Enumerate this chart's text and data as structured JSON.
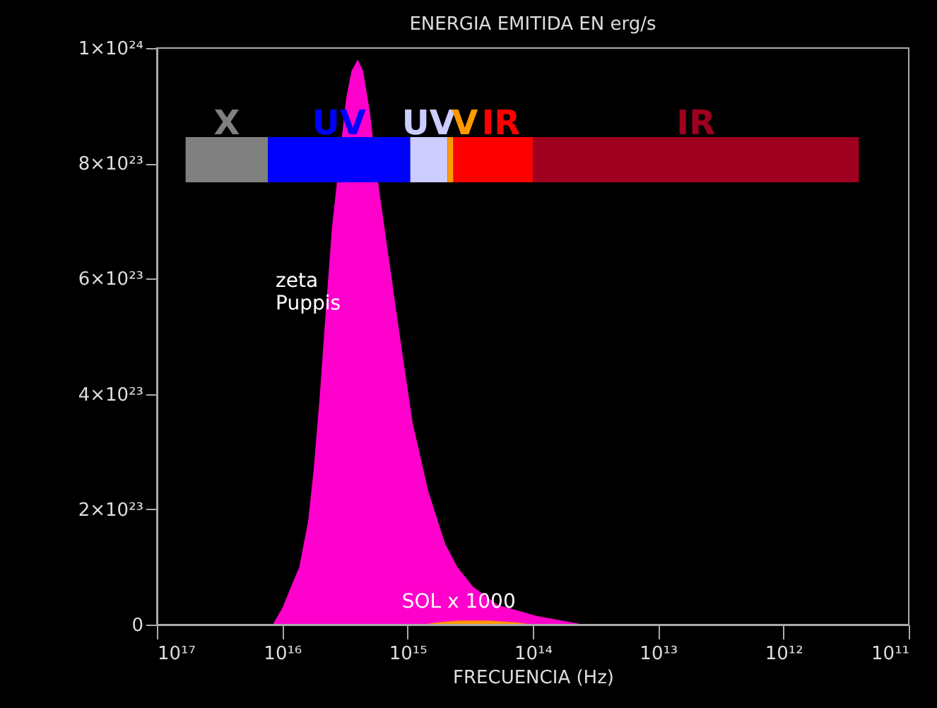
{
  "chart_data": {
    "type": "area",
    "title": "ENERGIA EMITIDA EN erg/s",
    "xlabel": "FRECUENCIA (Hz)",
    "log": "x",
    "xlim": [
      1e+17,
      100000000000.0
    ],
    "xticks": [
      {
        "value": 1e+17,
        "label": "10¹⁷"
      },
      {
        "value": 1e+16,
        "label": "10¹⁶"
      },
      {
        "value": 1000000000000000.0,
        "label": "10¹⁵"
      },
      {
        "value": 100000000000000.0,
        "label": "10¹⁴"
      },
      {
        "value": 10000000000000.0,
        "label": "10¹³"
      },
      {
        "value": 1000000000000.0,
        "label": "10¹²"
      },
      {
        "value": 100000000000.0,
        "label": "10¹¹"
      }
    ],
    "ylim": [
      0,
      1e+24
    ],
    "yticks": [
      0,
      {
        "value": 2e+23,
        "label": "2×10²³"
      },
      {
        "value": 4e+23,
        "label": "4×10²³"
      },
      {
        "value": 6e+23,
        "label": "6×10²³"
      },
      {
        "value": 8e+23,
        "label": "8×10²³"
      },
      {
        "value": 1e+24,
        "label": "1×10²⁴"
      }
    ],
    "series": [
      {
        "name": "zeta Puppis",
        "color": "#ff00cc",
        "x": [
          1.19e+16,
          9900000000000000.0,
          8500000000000000.0,
          7300000000000000.0,
          6200000000000000.0,
          5600000000000000.0,
          5000000000000000.0,
          4500000000000000.0,
          4000000000000000.0,
          3100000000000000.0,
          2800000000000000.0,
          2500000000000000.0,
          2260000000000000.0,
          2000000000000000.0,
          1700000000000000.0,
          1420000000000000.0,
          1150000000000000.0,
          910000000000000.0,
          680000000000000.0,
          500000000000000.0,
          400000000000000.0,
          300000000000000.0,
          190000000000000.0,
          93000000000000.0,
          39000000000000.0
        ],
        "values": [
          0,
          3e+22,
          6.6e+22,
          1e+23,
          1.8e+23,
          2.7e+23,
          4e+23,
          5.4e+23,
          6.9e+23,
          9.1e+23,
          9.6e+23,
          9.8e+23,
          9.6e+23,
          8.9e+23,
          7.6e+23,
          6.4e+23,
          5e+23,
          3.5e+23,
          2.3e+23,
          1.4e+23,
          1e+23,
          6.6e+22,
          3.4e+22,
          1.5e+22,
          0
        ]
      },
      {
        "name": "SOL x 1000",
        "color": "#ff9900",
        "x": [
          780000000000000.0,
          570000000000000.0,
          390000000000000.0,
          230000000000000.0,
          137000000000000.0,
          98000000000000.0
        ],
        "values": [
          0,
          4e+21,
          7e+21,
          7e+21,
          4e+21,
          0
        ]
      }
    ],
    "bands": [
      {
        "axis": "x",
        "from": 5.9e+16,
        "to": 1.3e+16,
        "label": "X",
        "color": "#808080"
      },
      {
        "axis": "x",
        "from": 1.3e+16,
        "to": 950000000000000.0,
        "label": "UV",
        "color": "#0000ff"
      },
      {
        "axis": "x",
        "from": 950000000000000.0,
        "to": 480000000000000.0,
        "label": "UV",
        "color": "#ccccff"
      },
      {
        "axis": "x",
        "from": 480000000000000.0,
        "to": 430000000000000.0,
        "label": "V",
        "color": "#ff9900"
      },
      {
        "axis": "x",
        "from": 430000000000000.0,
        "to": 100000000000000.0,
        "label": "IR",
        "color": "#ff0000"
      },
      {
        "axis": "x",
        "from": 100000000000000.0,
        "to": 250000000000.0,
        "label": "IR",
        "color": "#a00020"
      }
    ]
  }
}
